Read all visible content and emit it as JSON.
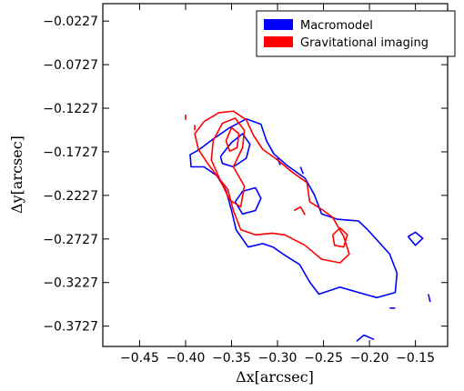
{
  "chart_data": {
    "type": "contour",
    "title": "",
    "xlabel": "Δx[arcsec]",
    "ylabel": "Δy[arcsec]",
    "xlim": [
      -0.49,
      -0.115
    ],
    "ylim": [
      -0.396,
      -0.0027
    ],
    "x_ticks": [
      -0.45,
      -0.4,
      -0.35,
      -0.3,
      -0.25,
      -0.2,
      -0.15
    ],
    "x_tick_labels": [
      "−0.45",
      "−0.40",
      "−0.35",
      "−0.30",
      "−0.25",
      "−0.20",
      "−0.15"
    ],
    "y_ticks": [
      -0.0227,
      -0.0727,
      -0.1227,
      -0.1727,
      -0.2227,
      -0.2727,
      -0.3227,
      -0.3727
    ],
    "y_tick_labels": [
      "−0.0227",
      "−0.0727",
      "−0.1227",
      "−0.1727",
      "−0.2227",
      "−0.2727",
      "−0.3227",
      "−0.3727"
    ],
    "grid": false,
    "legend_position": "top-right",
    "series": [
      {
        "name": "Macromodel",
        "color": "#0000ff",
        "contours": [
          [
            [
              -0.385,
              -0.17
            ],
            [
              -0.37,
              -0.158
            ],
            [
              -0.352,
              -0.145
            ],
            [
              -0.334,
              -0.135
            ],
            [
              -0.318,
              -0.141
            ],
            [
              -0.312,
              -0.16
            ],
            [
              -0.304,
              -0.175
            ],
            [
              -0.29,
              -0.188
            ],
            [
              -0.27,
              -0.203
            ],
            [
              -0.26,
              -0.222
            ],
            [
              -0.252,
              -0.244
            ],
            [
              -0.235,
              -0.25
            ],
            [
              -0.212,
              -0.252
            ],
            [
              -0.202,
              -0.262
            ],
            [
              -0.19,
              -0.276
            ],
            [
              -0.178,
              -0.29
            ],
            [
              -0.17,
              -0.312
            ],
            [
              -0.172,
              -0.334
            ],
            [
              -0.192,
              -0.34
            ],
            [
              -0.212,
              -0.334
            ],
            [
              -0.232,
              -0.328
            ],
            [
              -0.255,
              -0.336
            ],
            [
              -0.265,
              -0.322
            ],
            [
              -0.276,
              -0.302
            ],
            [
              -0.294,
              -0.29
            ],
            [
              -0.305,
              -0.282
            ],
            [
              -0.316,
              -0.278
            ],
            [
              -0.332,
              -0.282
            ],
            [
              -0.345,
              -0.262
            ],
            [
              -0.35,
              -0.24
            ],
            [
              -0.356,
              -0.217
            ],
            [
              -0.366,
              -0.2
            ],
            [
              -0.38,
              -0.19
            ],
            [
              -0.394,
              -0.19
            ],
            [
              -0.395,
              -0.176
            ],
            [
              -0.385,
              -0.17
            ]
          ],
          [
            [
              -0.362,
              -0.178
            ],
            [
              -0.35,
              -0.162
            ],
            [
              -0.338,
              -0.152
            ],
            [
              -0.33,
              -0.164
            ],
            [
              -0.334,
              -0.18
            ],
            [
              -0.348,
              -0.19
            ],
            [
              -0.36,
              -0.186
            ],
            [
              -0.362,
              -0.178
            ]
          ],
          [
            [
              -0.346,
              -0.23
            ],
            [
              -0.338,
              -0.218
            ],
            [
              -0.324,
              -0.214
            ],
            [
              -0.318,
              -0.226
            ],
            [
              -0.324,
              -0.24
            ],
            [
              -0.338,
              -0.244
            ],
            [
              -0.346,
              -0.23
            ]
          ],
          [
            [
              -0.158,
              -0.27
            ],
            [
              -0.15,
              -0.265
            ],
            [
              -0.142,
              -0.272
            ],
            [
              -0.15,
              -0.28
            ],
            [
              -0.158,
              -0.27
            ]
          ],
          [
            [
              -0.3,
              -0.18
            ],
            [
              -0.297,
              -0.188
            ]
          ],
          [
            [
              -0.275,
              -0.19
            ],
            [
              -0.272,
              -0.198
            ]
          ],
          [
            [
              -0.214,
              -0.39
            ],
            [
              -0.206,
              -0.383
            ],
            [
              -0.195,
              -0.388
            ]
          ],
          [
            [
              -0.136,
              -0.336
            ],
            [
              -0.134,
              -0.345
            ]
          ],
          [
            [
              -0.178,
              -0.352
            ],
            [
              -0.172,
              -0.352
            ]
          ]
        ]
      },
      {
        "name": "Gravitational imaging",
        "color": "#ff0000",
        "contours": [
          [
            [
              -0.38,
              -0.138
            ],
            [
              -0.364,
              -0.128
            ],
            [
              -0.348,
              -0.126
            ],
            [
              -0.334,
              -0.136
            ],
            [
              -0.326,
              -0.154
            ],
            [
              -0.316,
              -0.17
            ],
            [
              -0.3,
              -0.182
            ],
            [
              -0.284,
              -0.196
            ],
            [
              -0.268,
              -0.208
            ],
            [
              -0.265,
              -0.23
            ],
            [
              -0.25,
              -0.24
            ],
            [
              -0.24,
              -0.248
            ],
            [
              -0.228,
              -0.27
            ],
            [
              -0.222,
              -0.29
            ],
            [
              -0.232,
              -0.3
            ],
            [
              -0.252,
              -0.296
            ],
            [
              -0.27,
              -0.28
            ],
            [
              -0.292,
              -0.268
            ],
            [
              -0.306,
              -0.266
            ],
            [
              -0.324,
              -0.268
            ],
            [
              -0.34,
              -0.262
            ],
            [
              -0.348,
              -0.24
            ],
            [
              -0.354,
              -0.216
            ],
            [
              -0.366,
              -0.2
            ],
            [
              -0.376,
              -0.186
            ],
            [
              -0.386,
              -0.17
            ],
            [
              -0.39,
              -0.152
            ],
            [
              -0.38,
              -0.138
            ]
          ],
          [
            [
              -0.37,
              -0.16
            ],
            [
              -0.36,
              -0.14
            ],
            [
              -0.346,
              -0.134
            ],
            [
              -0.336,
              -0.148
            ],
            [
              -0.338,
              -0.168
            ],
            [
              -0.348,
              -0.19
            ],
            [
              -0.336,
              -0.212
            ],
            [
              -0.34,
              -0.236
            ],
            [
              -0.352,
              -0.228
            ],
            [
              -0.362,
              -0.206
            ],
            [
              -0.372,
              -0.182
            ],
            [
              -0.37,
              -0.16
            ]
          ],
          [
            [
              -0.356,
              -0.16
            ],
            [
              -0.35,
              -0.145
            ],
            [
              -0.342,
              -0.152
            ],
            [
              -0.344,
              -0.168
            ],
            [
              -0.352,
              -0.172
            ],
            [
              -0.356,
              -0.16
            ]
          ],
          [
            [
              -0.24,
              -0.268
            ],
            [
              -0.232,
              -0.26
            ],
            [
              -0.224,
              -0.268
            ],
            [
              -0.228,
              -0.282
            ],
            [
              -0.238,
              -0.28
            ],
            [
              -0.24,
              -0.268
            ]
          ],
          [
            [
              -0.282,
              -0.24
            ],
            [
              -0.275,
              -0.236
            ],
            [
              -0.27,
              -0.245
            ]
          ],
          [
            [
              -0.39,
              -0.142
            ],
            [
              -0.39,
              -0.148
            ]
          ],
          [
            [
              -0.4,
              -0.13
            ],
            [
              -0.4,
              -0.136
            ]
          ]
        ]
      }
    ]
  }
}
